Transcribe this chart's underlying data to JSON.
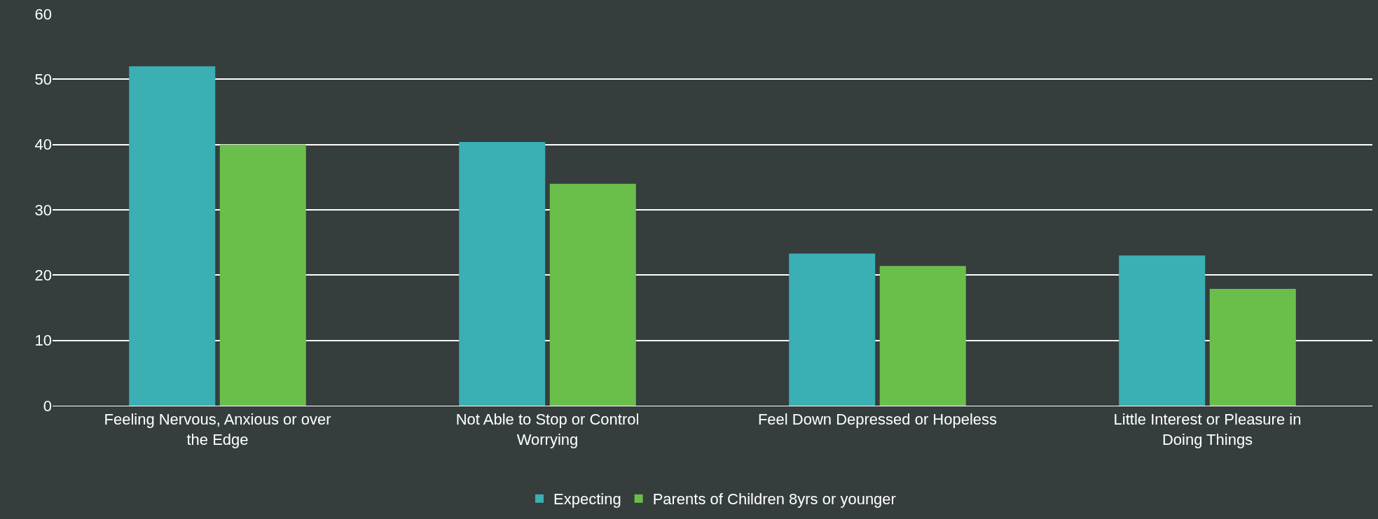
{
  "chart_data": {
    "type": "bar",
    "categories": [
      "Feeling Nervous, Anxious or over the Edge",
      "Not Able to Stop or Control Worrying",
      "Feel Down Depressed or Hopeless",
      "Little Interest or Pleasure in Doing Things"
    ],
    "series": [
      {
        "name": "Expecting",
        "color": "#3aafb4",
        "values": [
          52,
          40.4,
          23.3,
          23.0
        ]
      },
      {
        "name": "Parents of Children 8yrs or younger",
        "color": "#6abf4b",
        "values": [
          40.0,
          34.0,
          21.4,
          17.9
        ]
      }
    ],
    "ylim": [
      0,
      60
    ],
    "yticks": [
      0,
      10,
      20,
      30,
      40,
      50,
      60
    ],
    "grid": "y",
    "legend": "bottom"
  }
}
